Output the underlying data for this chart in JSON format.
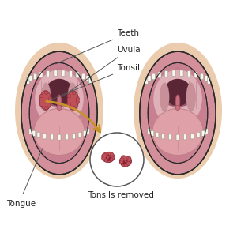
{
  "background_color": "#ffffff",
  "skin_glow_color": "#e8c4a0",
  "cheek_color": "#d4a090",
  "lip_color": "#d4888e",
  "inner_mouth_color": "#e8aab0",
  "palate_color": "#e0a8b0",
  "palate_ridge_color": "#c08890",
  "throat_dark_color": "#7a3850",
  "throat_mid_color": "#b06878",
  "tongue_color": "#e0a0a8",
  "tongue_edge_color": "#c08088",
  "uvula_color": "#c87080",
  "uvula_edge_color": "#a05060",
  "teeth_color": "#f8f8f0",
  "teeth_edge_color": "#999988",
  "tonsil_fill": "#c05058",
  "tonsil_edge": "#8a3040",
  "outline_color": "#2a2a2a",
  "label_color": "#222222",
  "arrow_color": "#c8922a",
  "circle_color": "#555555",
  "labels": {
    "teeth": "Teeth",
    "uvula": "Uvula",
    "tonsil": "Tonsil",
    "tongue": "Tongue",
    "tonsils_removed": "Tonsils removed"
  },
  "label_fontsize": 7.5,
  "figsize": [
    3.0,
    3.0
  ],
  "dpi": 100
}
